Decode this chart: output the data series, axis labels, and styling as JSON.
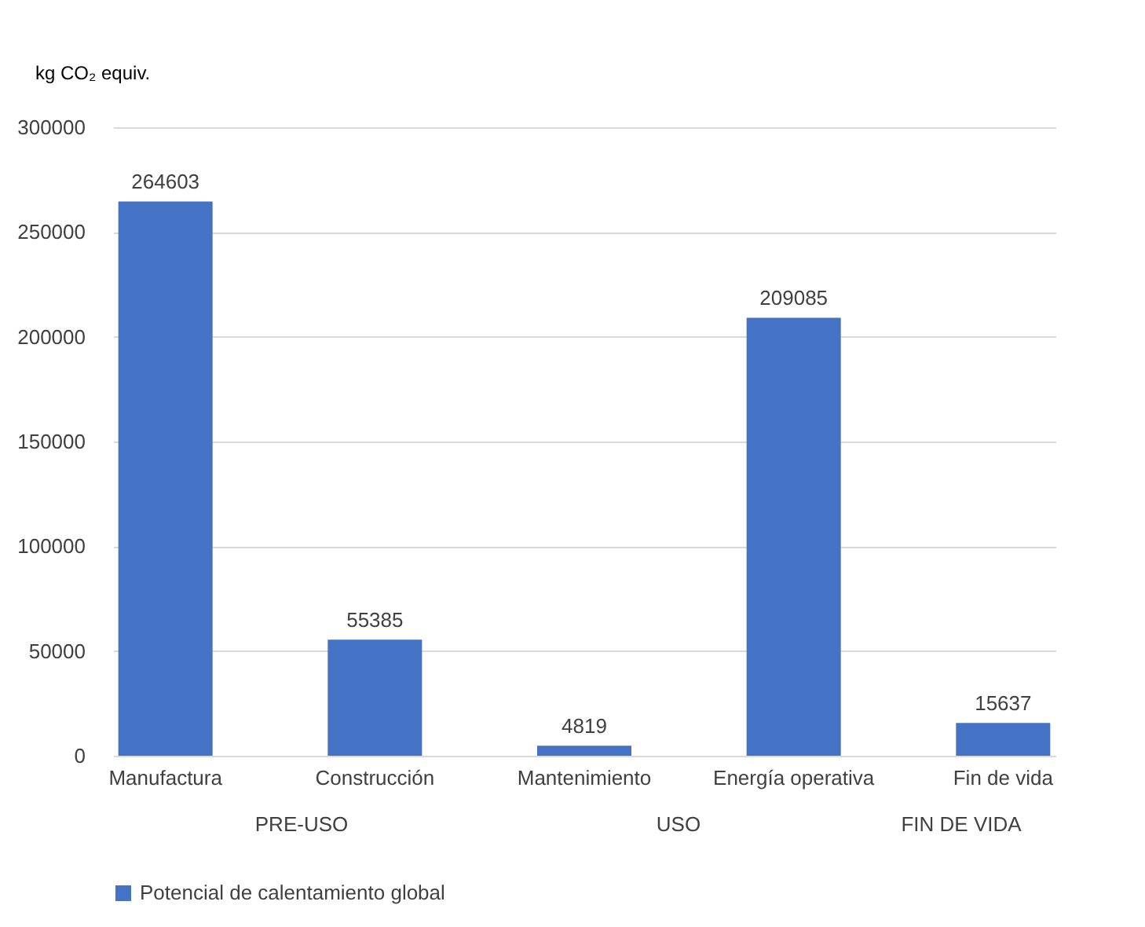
{
  "chart_data": {
    "type": "bar",
    "ylabel": "kg CO₂ equiv.",
    "categories": [
      "Manufactura",
      "Construcción",
      "Mantenimiento",
      "Energía operativa",
      "Fin de vida"
    ],
    "series": [
      {
        "name": "Potencial de calentamiento global",
        "color": "#4472c4",
        "values": [
          264603,
          55385,
          4819,
          209085,
          15637
        ]
      }
    ],
    "ylim": [
      0,
      300000
    ],
    "yticks": [
      0,
      50000,
      100000,
      150000,
      200000,
      250000,
      300000
    ],
    "grid": "y",
    "legend": "bottom",
    "data_labels": true,
    "annotations": [
      "PRE-USO",
      "USO",
      "FIN DE VIDA"
    ]
  }
}
